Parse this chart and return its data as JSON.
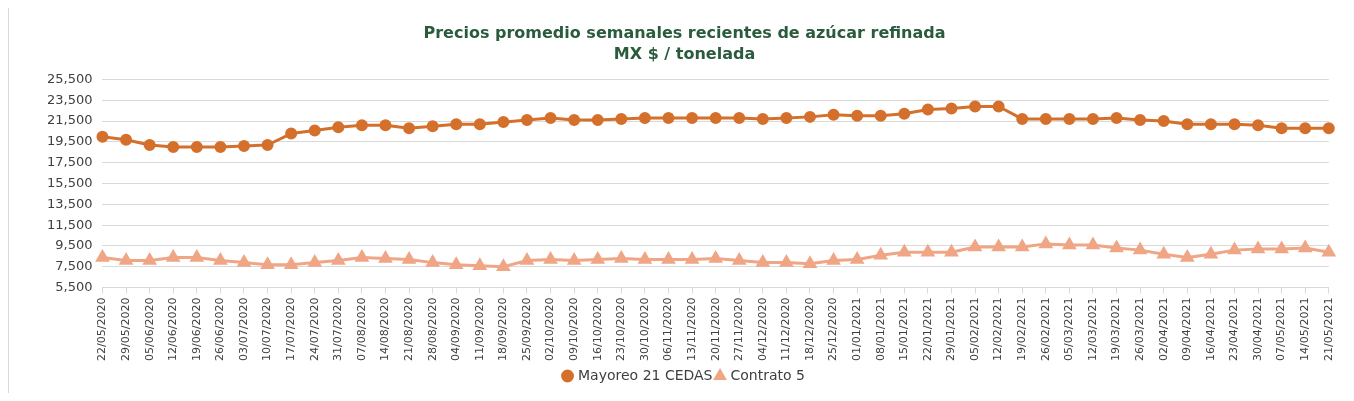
{
  "chart_data": {
    "type": "line",
    "title": "Precios promedio semanales recientes de azúcar refinada",
    "subtitle": "MX $ / tonelada",
    "categories": [
      "22/05/2020",
      "29/05/2020",
      "05/06/2020",
      "12/06/2020",
      "19/06/2020",
      "26/06/2020",
      "03/07/2020",
      "10/07/2020",
      "17/07/2020",
      "24/07/2020",
      "31/07/2020",
      "07/08/2020",
      "14/08/2020",
      "21/08/2020",
      "28/08/2020",
      "04/09/2020",
      "11/09/2020",
      "18/09/2020",
      "25/09/2020",
      "02/10/2020",
      "09/10/2020",
      "16/10/2020",
      "23/10/2020",
      "30/10/2020",
      "06/11/2020",
      "13/11/2020",
      "20/11/2020",
      "27/11/2020",
      "04/12/2020",
      "11/12/2020",
      "18/12/2020",
      "25/12/2020",
      "01/01/2021",
      "08/01/2021",
      "15/01/2021",
      "22/01/2021",
      "29/01/2021",
      "05/02/2021",
      "12/02/2021",
      "19/02/2021",
      "26/02/2021",
      "05/03/2021",
      "12/03/2021",
      "19/03/2021",
      "26/03/2021",
      "02/04/2021",
      "09/04/2021",
      "16/04/2021",
      "23/04/2021",
      "30/04/2021",
      "07/05/2021",
      "14/05/2021",
      "21/05/2021"
    ],
    "series": [
      {
        "name": "Mayoreo 21 CEDAS",
        "color": "#d4702b",
        "marker": "circle",
        "values": [
          20000,
          19700,
          19200,
          19000,
          19000,
          19000,
          19100,
          19200,
          20300,
          20600,
          20900,
          21100,
          21100,
          20800,
          21000,
          21200,
          21200,
          21400,
          21600,
          21800,
          21600,
          21600,
          21700,
          21800,
          21800,
          21800,
          21800,
          21800,
          21700,
          21800,
          21900,
          22100,
          22000,
          22000,
          22200,
          22600,
          22700,
          22900,
          22900,
          21700,
          21700,
          21700,
          21700,
          21800,
          21600,
          21500,
          21200,
          21200,
          21200,
          21100,
          20800,
          20800,
          20800
        ]
      },
      {
        "name": "Contrato 5",
        "color": "#f0a585",
        "marker": "triangle",
        "values": [
          8400,
          8100,
          8100,
          8400,
          8400,
          8100,
          7900,
          7700,
          7700,
          7900,
          8100,
          8400,
          8300,
          8200,
          7900,
          7700,
          7600,
          7500,
          8100,
          8200,
          8100,
          8200,
          8300,
          8200,
          8200,
          8200,
          8300,
          8100,
          7900,
          7900,
          7800,
          8100,
          8200,
          8600,
          8900,
          8900,
          8900,
          9400,
          9400,
          9400,
          9700,
          9600,
          9600,
          9300,
          9100,
          8700,
          8400,
          8700,
          9100,
          9200,
          9200,
          9300,
          8900
        ]
      }
    ],
    "ylim": [
      5500,
      25500
    ],
    "yticks": [
      {
        "value": 5500,
        "label": "5,500"
      },
      {
        "value": 7500,
        "label": "7,500"
      },
      {
        "value": 9500,
        "label": "9,500"
      },
      {
        "value": 11500,
        "label": "11,500"
      },
      {
        "value": 13500,
        "label": "13,500"
      },
      {
        "value": 15500,
        "label": "15,500"
      },
      {
        "value": 17500,
        "label": "17,500"
      },
      {
        "value": 19500,
        "label": "19,500"
      },
      {
        "value": 21500,
        "label": "21,500"
      },
      {
        "value": 23500,
        "label": "23,500"
      },
      {
        "value": 25500,
        "label": "25,500"
      }
    ],
    "grid": "y",
    "legend": "bottom",
    "line_style": "solid"
  }
}
